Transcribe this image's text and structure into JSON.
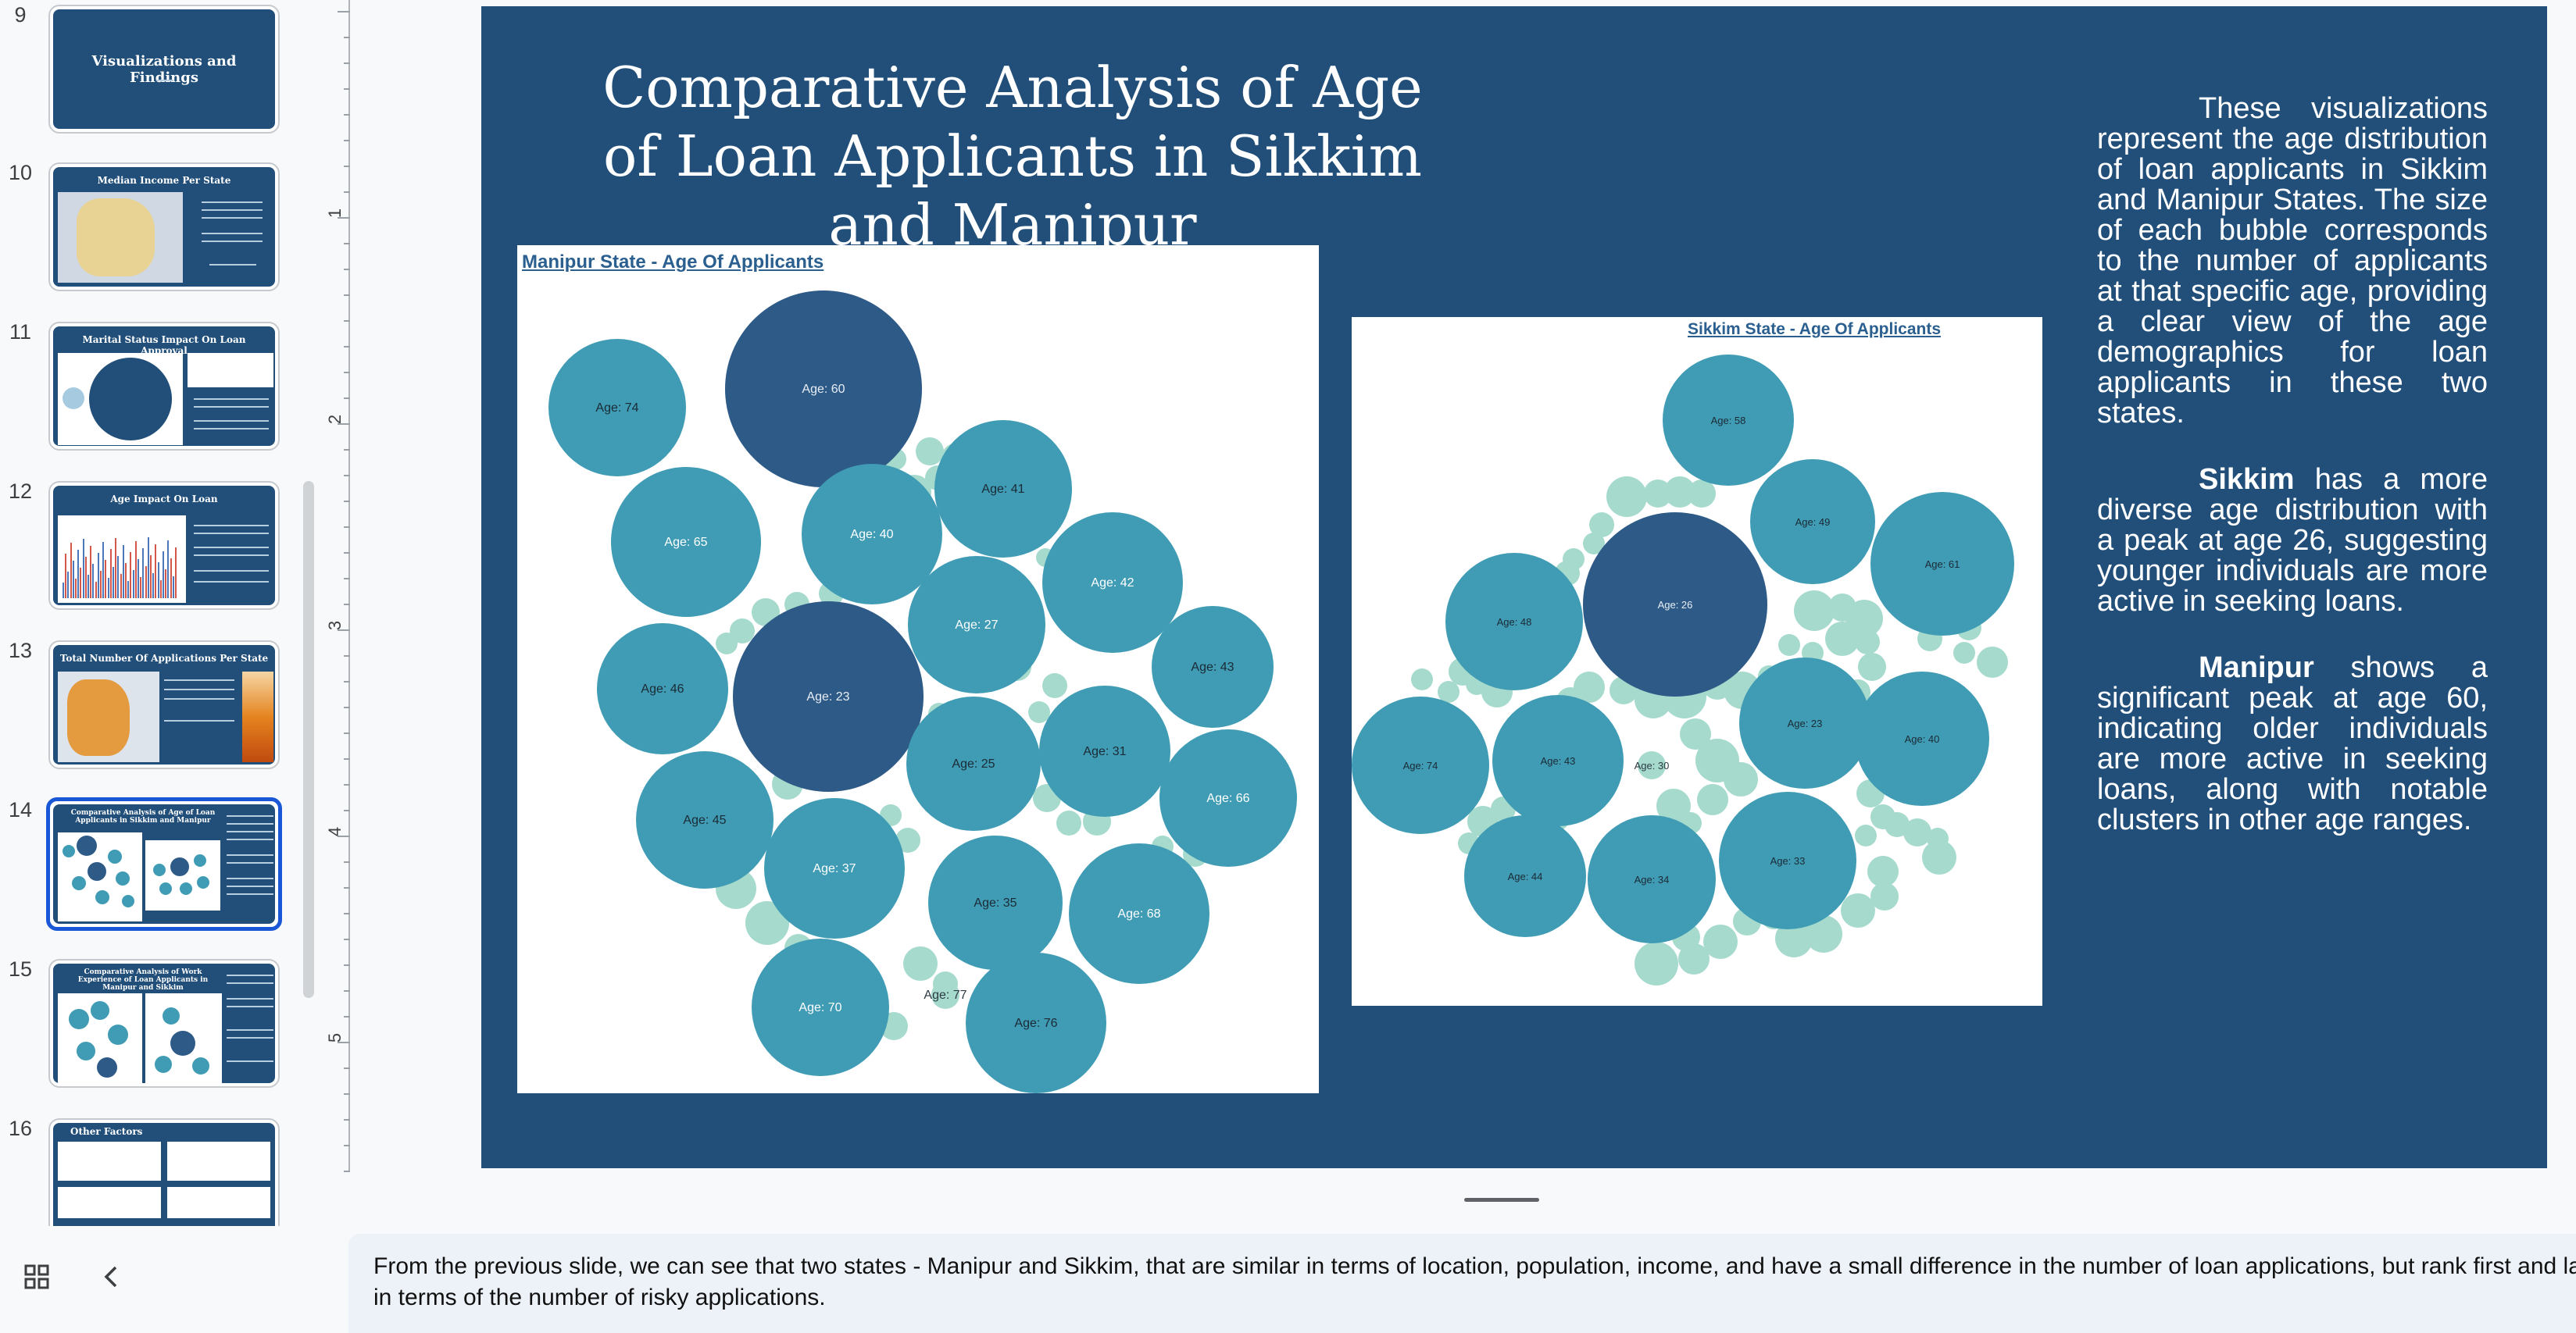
{
  "filmstrip": {
    "slides": [
      {
        "number": "9",
        "title": "Visualizations and Findings",
        "kind": "title"
      },
      {
        "number": "10",
        "title": "Median Income Per State",
        "kind": "map"
      },
      {
        "number": "11",
        "title": "Marital Status Impact On Loan Approval",
        "kind": "bubble1"
      },
      {
        "number": "12",
        "title": "Age Impact On Loan",
        "kind": "bars"
      },
      {
        "number": "13",
        "title": "Total Number Of Applications Per State",
        "kind": "map2"
      },
      {
        "number": "14",
        "title": "Comparative Analysis of Age of Loan Applicants in Sikkim and Manipur",
        "kind": "bubbles",
        "selected": true
      },
      {
        "number": "15",
        "title": "Comparative Analysis of Work Experience of Loan Applicants in Manipur and Sikkim",
        "kind": "bubbles"
      },
      {
        "number": "16",
        "title": "Other Factors",
        "kind": "tables"
      }
    ],
    "grid_icon": "grid-view-icon",
    "back_icon": "chevron-left-icon"
  },
  "ruler": {
    "labels": [
      "1",
      "2",
      "3",
      "4",
      "5"
    ]
  },
  "slide": {
    "title": "Comparative Analysis of Age of Loan Applicants in Sikkim and Manipur",
    "description": {
      "intro": "These visualizations represent the age distribution of loan applicants in Sikkim and Manipur States. The size of each bubble corresponds to the number of applicants at that specific age, providing a clear view of the age demographics for loan applicants in these two states.",
      "sikkim_bold": "Sikkim",
      "sikkim_rest": " has a more diverse age distribution with a peak at age 26, suggesting younger individuals are more active in seeking loans.",
      "manipur_bold": "Manipur",
      "manipur_rest": " shows a significant peak at age 60, indicating older individuals are more active in seeking loans, along with notable clusters in other age ranges."
    }
  },
  "chart_data": [
    {
      "type": "bubble",
      "title": "Manipur State - Age Of Applicants",
      "labels": [
        "Age: 60",
        "Age: 74",
        "Age: 65",
        "Age: 40",
        "Age: 41",
        "Age: 42",
        "Age: 27",
        "Age: 46",
        "Age: 23",
        "Age: 43",
        "Age: 31",
        "Age: 25",
        "Age: 45",
        "Age: 66",
        "Age: 37",
        "Age: 35",
        "Age: 68",
        "Age: 70",
        "Age: 77",
        "Age: 76"
      ],
      "values": [
        57,
        21,
        31,
        28,
        25,
        28,
        26,
        21,
        54,
        18,
        25,
        20,
        22,
        27,
        27,
        23,
        30,
        26,
        3,
        24
      ],
      "peak": "Age: 60"
    },
    {
      "type": "bubble",
      "title": "Sikkim State - Age Of Applicants",
      "labels": [
        "Age: 58",
        "Age: 49",
        "Age: 61",
        "Age: 48",
        "Age: 26",
        "Age: 23",
        "Age: 40",
        "Age: 74",
        "Age: 43",
        "Age: 30",
        "Age: 33",
        "Age: 44",
        "Age: 34"
      ],
      "values": [
        14,
        13,
        17,
        15,
        29,
        15,
        15,
        15,
        14,
        3,
        14,
        12,
        14
      ],
      "peak": "Age: 26"
    }
  ],
  "notes": {
    "text": "From the previous slide, we can see that two states  - Manipur and Sikkim, that are similar in terms of location, population, income, and have a small difference in the number of loan applications, but rank first and last in terms of the number of risky applications."
  },
  "colors": {
    "slide_bg": "#214f79",
    "bubble_dark": "#2e5a87",
    "bubble_mid": "#3f9cb4",
    "bubble_light": "#a6dacd",
    "selected_border": "#1a57d6"
  }
}
